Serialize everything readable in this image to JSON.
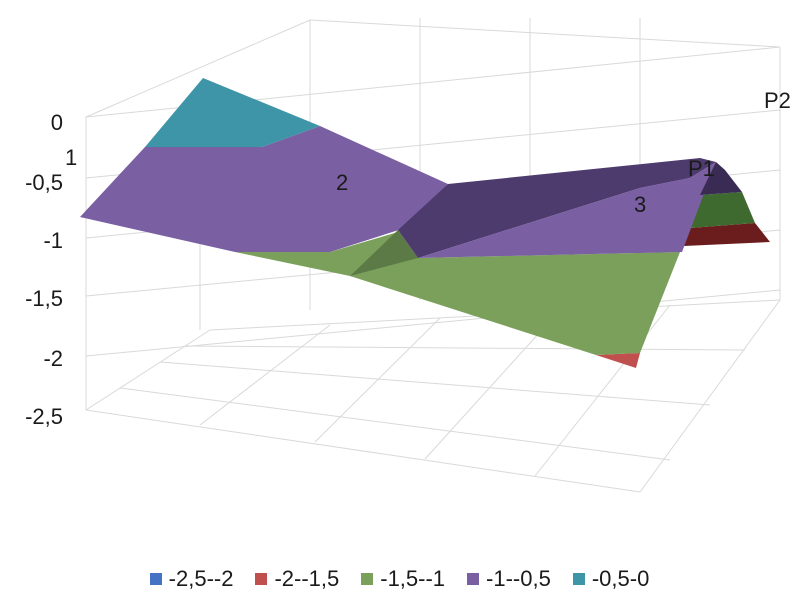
{
  "chart_data": {
    "type": "surface",
    "z_ticks": [
      "0",
      "-0,5",
      "-1",
      "-1,5",
      "-2",
      "-2,5"
    ],
    "z_range": [
      -2.5,
      0
    ],
    "series_labels": [
      "P1",
      "P2"
    ],
    "category_labels": [
      "1",
      "2",
      "3"
    ],
    "legend": [
      {
        "label": "-2,5--2",
        "color": "#4472c4"
      },
      {
        "label": "-2--1,5",
        "color": "#c0504d"
      },
      {
        "label": "-1,5--1",
        "color": "#7ba05b"
      },
      {
        "label": "-1--0,5",
        "color": "#7a5fa3"
      },
      {
        "label": "-0,5-0",
        "color": "#3e95a8"
      }
    ],
    "grid": true,
    "legend_position": "bottom"
  }
}
